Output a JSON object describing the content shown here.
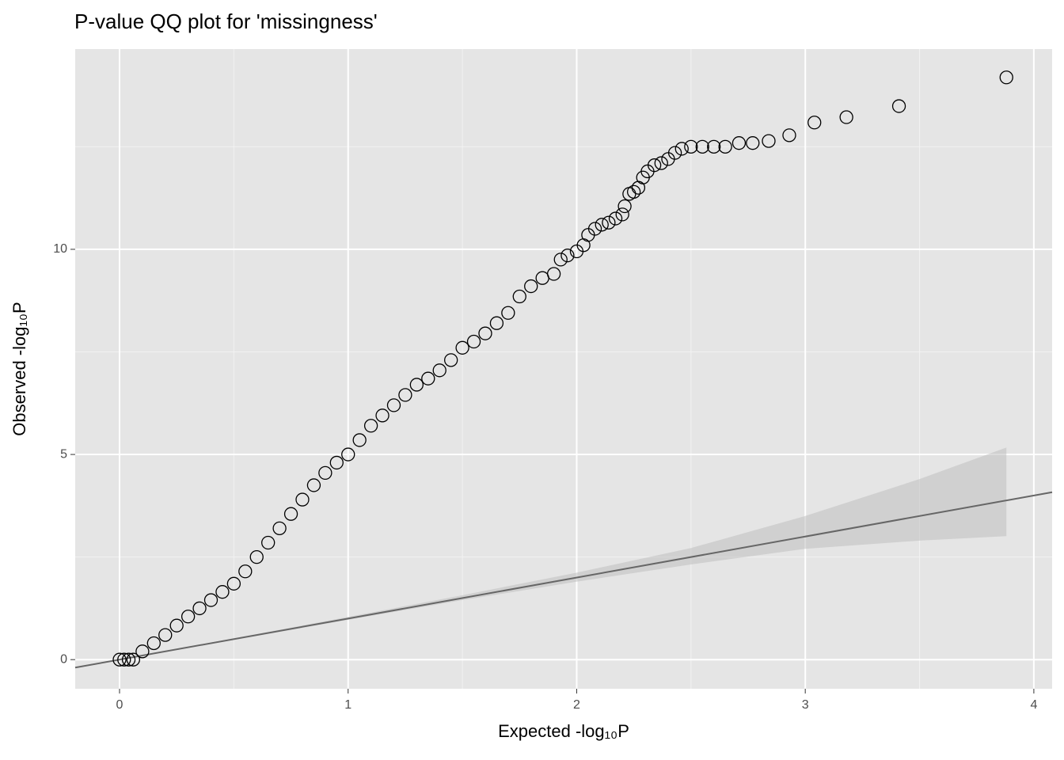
{
  "chart_data": {
    "type": "scatter",
    "title": "P-value QQ plot for 'missingness'",
    "x_label": "Expected -log₁₀P",
    "y_label": "Observed -log₁₀P",
    "xlim": [
      -0.194,
      4.08
    ],
    "ylim": [
      -0.71,
      14.88
    ],
    "xticks": [
      0,
      1,
      2,
      3,
      4
    ],
    "yticks": [
      0,
      5,
      10
    ],
    "x_minor_grid": [
      0.5,
      1.5,
      2.5,
      3.5
    ],
    "y_minor_grid": [
      2.5,
      7.5,
      12.5
    ],
    "grid": true,
    "identity_line": true,
    "point_color": "#000000",
    "line_color": "#666666",
    "band_color": "#bfbfbf",
    "x": [
      0,
      0.02,
      0.04,
      0.06,
      0.1,
      0.15,
      0.2,
      0.25,
      0.3,
      0.35,
      0.4,
      0.45,
      0.5,
      0.55,
      0.6,
      0.65,
      0.7,
      0.75,
      0.8,
      0.85,
      0.9,
      0.95,
      1.0,
      1.05,
      1.1,
      1.15,
      1.2,
      1.25,
      1.3,
      1.35,
      1.4,
      1.45,
      1.5,
      1.55,
      1.6,
      1.65,
      1.7,
      1.75,
      1.8,
      1.85,
      1.9,
      1.93,
      1.96,
      2.0,
      2.03,
      2.05,
      2.08,
      2.11,
      2.14,
      2.17,
      2.2,
      2.21,
      2.23,
      2.25,
      2.27,
      2.29,
      2.31,
      2.34,
      2.37,
      2.4,
      2.43,
      2.46,
      2.5,
      2.55,
      2.6,
      2.65,
      2.71,
      2.77,
      2.84,
      2.93,
      3.04,
      3.18,
      3.41,
      3.88
    ],
    "values": [
      0,
      0,
      0,
      0,
      0.2,
      0.4,
      0.6,
      0.83,
      1.05,
      1.25,
      1.45,
      1.65,
      1.85,
      2.15,
      2.5,
      2.85,
      3.2,
      3.55,
      3.9,
      4.25,
      4.55,
      4.8,
      5.0,
      5.35,
      5.7,
      5.95,
      6.2,
      6.45,
      6.7,
      6.85,
      7.05,
      7.3,
      7.6,
      7.75,
      7.95,
      8.2,
      8.45,
      8.85,
      9.1,
      9.3,
      9.4,
      9.75,
      9.85,
      9.95,
      10.1,
      10.35,
      10.5,
      10.6,
      10.65,
      10.75,
      10.85,
      11.05,
      11.35,
      11.4,
      11.5,
      11.75,
      11.9,
      12.05,
      12.1,
      12.2,
      12.35,
      12.45,
      12.5,
      12.5,
      12.5,
      12.5,
      12.59,
      12.59,
      12.64,
      12.78,
      13.09,
      13.22,
      13.49,
      14.19
    ],
    "band": {
      "x": [
        0,
        0.5,
        1,
        1.5,
        2,
        2.5,
        3,
        3.5,
        3.88
      ],
      "lower": [
        0,
        0.48,
        0.97,
        1.45,
        1.9,
        2.32,
        2.7,
        2.9,
        3.01
      ],
      "upper": [
        0,
        0.52,
        1.04,
        1.57,
        2.12,
        2.72,
        3.5,
        4.4,
        5.17
      ]
    }
  }
}
